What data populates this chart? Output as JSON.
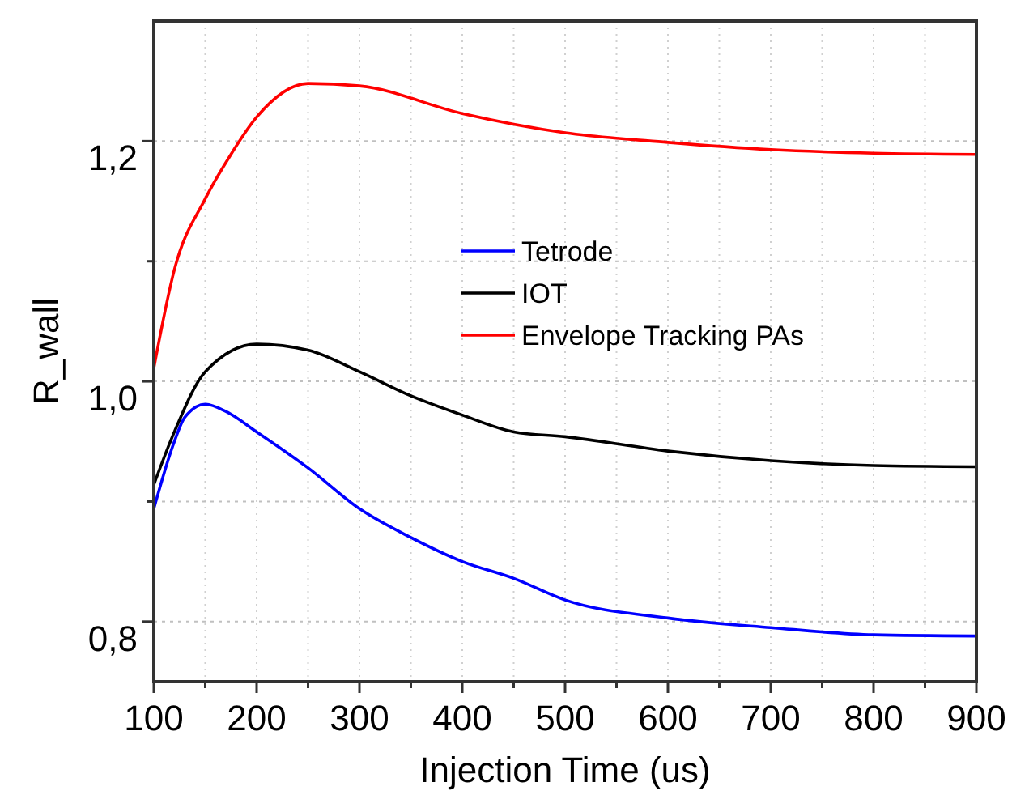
{
  "chart_data": {
    "type": "line",
    "xlabel": "Injection Time (us)",
    "ylabel": "R_wall",
    "xlim": [
      100,
      900
    ],
    "ylim": [
      0.75,
      1.3
    ],
    "xticks": [
      100,
      {
        "value": 150,
        "label": null
      },
      200,
      {
        "value": 250,
        "label": null
      },
      300,
      {
        "value": 350,
        "label": null
      },
      400,
      {
        "value": 450,
        "label": null
      },
      500,
      {
        "value": 550,
        "label": null
      },
      600,
      {
        "value": 650,
        "label": null
      },
      700,
      {
        "value": 750,
        "label": null
      },
      800,
      {
        "value": 850,
        "label": null
      },
      900
    ],
    "yticks": [
      {
        "value": 0.8,
        "label": "0,8"
      },
      {
        "value": 0.9,
        "label": null
      },
      {
        "value": 1.0,
        "label": "1,0"
      },
      {
        "value": 1.1,
        "label": null
      },
      {
        "value": 1.2,
        "label": "1,2"
      }
    ],
    "grid": true,
    "legend": "right",
    "line_style": "solid",
    "series": [
      {
        "name": "Tetrode",
        "color": "#0000ff",
        "x": [
          100,
          120,
          130,
          150,
          170,
          200,
          250,
          300,
          350,
          400,
          450,
          500,
          600,
          700,
          800,
          900
        ],
        "values": [
          0.894,
          0.95,
          0.97,
          0.981,
          0.975,
          0.958,
          0.928,
          0.894,
          0.87,
          0.85,
          0.836,
          0.818,
          0.803,
          0.795,
          0.789,
          0.788
        ]
      },
      {
        "name": "IOT",
        "color": "#000000",
        "x": [
          100,
          120,
          150,
          200,
          250,
          300,
          350,
          400,
          450,
          500,
          600,
          700,
          800,
          900
        ],
        "values": [
          0.914,
          0.958,
          1.008,
          1.031,
          1.026,
          1.008,
          0.988,
          0.972,
          0.958,
          0.954,
          0.942,
          0.934,
          0.93,
          0.929
        ]
      },
      {
        "name": "Envelope Tracking PAs",
        "color": "#ff0000",
        "x": [
          100,
          120,
          150,
          175,
          200,
          250,
          300,
          400,
          500,
          600,
          700,
          800,
          900
        ],
        "values": [
          1.011,
          1.093,
          1.152,
          1.189,
          1.22,
          1.248,
          1.246,
          1.223,
          1.207,
          1.199,
          1.193,
          1.19,
          1.189
        ]
      }
    ]
  }
}
